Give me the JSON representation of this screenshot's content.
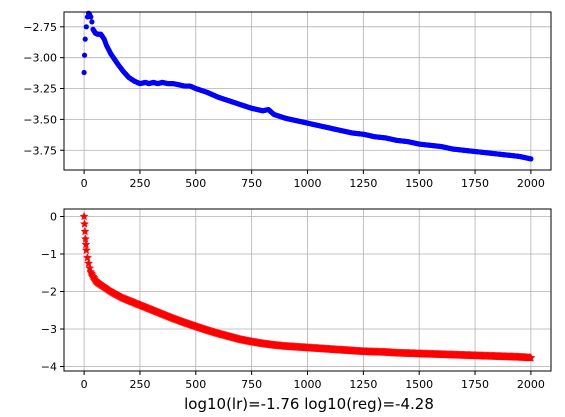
{
  "caption": "log10(lr)=-1.76 log10(reg)=-4.28",
  "colors": {
    "top_series": "#0000ff",
    "bottom_series": "#ff0000",
    "grid": "#b0b0b0"
  },
  "chart_data": [
    {
      "type": "scatter",
      "title": "",
      "xlabel": "",
      "ylabel": "",
      "grid": true,
      "marker": "circle",
      "xlim": [
        -90,
        2090
      ],
      "ylim": [
        -3.91,
        -2.63
      ],
      "xticks": [
        0,
        250,
        500,
        750,
        1000,
        1250,
        1500,
        1750,
        2000
      ],
      "xtick_labels": [
        "0",
        "250",
        "500",
        "750",
        "1000",
        "1250",
        "1500",
        "1750",
        "2000"
      ],
      "yticks": [
        -2.75,
        -3.0,
        -3.25,
        -3.5,
        -3.75
      ],
      "ytick_labels": [
        "−2.75",
        "−3.00",
        "−3.25",
        "−3.50",
        "−3.75"
      ],
      "series": [
        {
          "color": "#0000ff",
          "x": [
            0,
            2,
            5,
            10,
            15,
            20,
            25,
            30,
            35,
            40,
            50,
            60,
            75,
            90,
            100,
            120,
            150,
            175,
            200,
            225,
            250,
            275,
            290,
            310,
            330,
            350,
            375,
            400,
            425,
            450,
            475,
            500,
            550,
            600,
            650,
            700,
            750,
            800,
            825,
            850,
            900,
            950,
            1000,
            1050,
            1100,
            1150,
            1200,
            1250,
            1300,
            1350,
            1400,
            1450,
            1500,
            1550,
            1600,
            1650,
            1700,
            1750,
            1800,
            1850,
            1900,
            1950,
            2000
          ],
          "y": [
            -3.12,
            -2.98,
            -2.85,
            -2.75,
            -2.67,
            -2.64,
            -2.65,
            -2.67,
            -2.71,
            -2.77,
            -2.8,
            -2.81,
            -2.81,
            -2.85,
            -2.9,
            -2.97,
            -3.05,
            -3.11,
            -3.16,
            -3.19,
            -3.21,
            -3.2,
            -3.21,
            -3.2,
            -3.21,
            -3.2,
            -3.21,
            -3.21,
            -3.22,
            -3.23,
            -3.23,
            -3.25,
            -3.28,
            -3.32,
            -3.35,
            -3.38,
            -3.41,
            -3.43,
            -3.42,
            -3.46,
            -3.49,
            -3.51,
            -3.53,
            -3.55,
            -3.57,
            -3.59,
            -3.61,
            -3.62,
            -3.64,
            -3.65,
            -3.67,
            -3.68,
            -3.7,
            -3.71,
            -3.72,
            -3.74,
            -3.75,
            -3.76,
            -3.77,
            -3.78,
            -3.79,
            -3.8,
            -3.82
          ]
        }
      ]
    },
    {
      "type": "scatter",
      "title": "",
      "xlabel": "",
      "ylabel": "",
      "grid": true,
      "marker": "star",
      "xlim": [
        -90,
        2090
      ],
      "ylim": [
        -4.12,
        0.2
      ],
      "xticks": [
        0,
        250,
        500,
        750,
        1000,
        1250,
        1500,
        1750,
        2000
      ],
      "xtick_labels": [
        "0",
        "250",
        "500",
        "750",
        "1000",
        "1250",
        "1500",
        "1750",
        "2000"
      ],
      "yticks": [
        0,
        -1,
        -2,
        -3,
        -4
      ],
      "ytick_labels": [
        "0",
        "−1",
        "−2",
        "−3",
        "−4"
      ],
      "series": [
        {
          "color": "#ff0000",
          "x": [
            0,
            2,
            4,
            6,
            8,
            10,
            15,
            20,
            25,
            30,
            40,
            50,
            60,
            75,
            100,
            125,
            150,
            175,
            200,
            250,
            300,
            350,
            400,
            450,
            500,
            550,
            600,
            650,
            700,
            750,
            800,
            850,
            900,
            950,
            1000,
            1050,
            1100,
            1150,
            1200,
            1250,
            1300,
            1350,
            1400,
            1450,
            1500,
            1550,
            1600,
            1650,
            1700,
            1750,
            1800,
            1850,
            1900,
            1950,
            2000
          ],
          "y": [
            0.0,
            -0.2,
            -0.4,
            -0.6,
            -0.75,
            -0.9,
            -1.1,
            -1.25,
            -1.38,
            -1.48,
            -1.6,
            -1.7,
            -1.76,
            -1.82,
            -1.92,
            -2.02,
            -2.1,
            -2.18,
            -2.24,
            -2.36,
            -2.48,
            -2.6,
            -2.72,
            -2.83,
            -2.93,
            -3.03,
            -3.12,
            -3.2,
            -3.28,
            -3.34,
            -3.39,
            -3.43,
            -3.46,
            -3.48,
            -3.5,
            -3.52,
            -3.54,
            -3.56,
            -3.58,
            -3.6,
            -3.61,
            -3.62,
            -3.64,
            -3.65,
            -3.66,
            -3.67,
            -3.68,
            -3.69,
            -3.7,
            -3.71,
            -3.72,
            -3.73,
            -3.74,
            -3.75,
            -3.77
          ]
        }
      ]
    }
  ]
}
